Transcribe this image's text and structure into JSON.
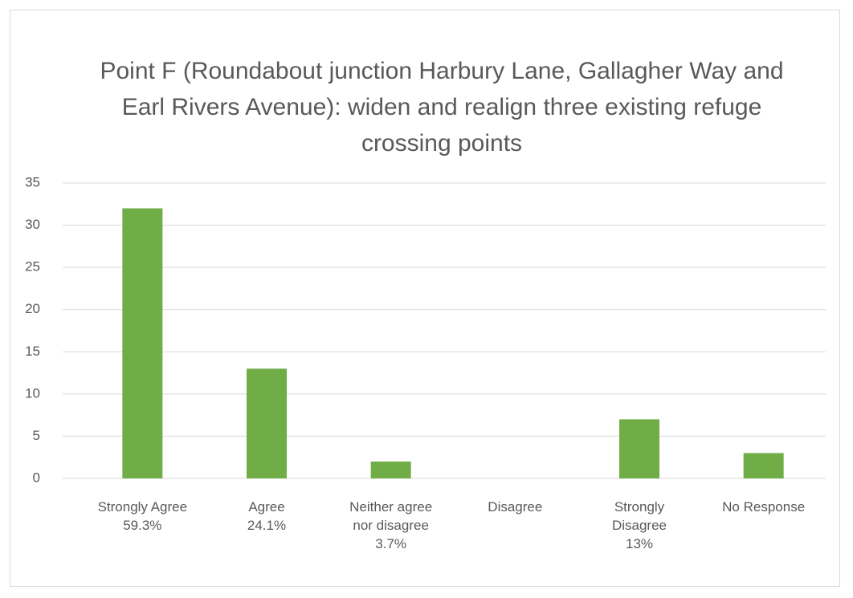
{
  "chart_data": {
    "type": "bar",
    "title": "Point F (Roundabout junction Harbury Lane, Gallagher Way and Earl Rivers Avenue): widen and realign three existing refuge crossing points",
    "categories": [
      "Strongly Agree\n59.3%",
      "Agree\n24.1%",
      "Neither agree\nnor disagree\n3.7%",
      "Disagree",
      "Strongly\nDisagree\n13%",
      "No Response"
    ],
    "values": [
      32,
      13,
      2,
      0,
      7,
      3
    ],
    "color": "#70ad47",
    "ylim": [
      0,
      35
    ],
    "yticks": [
      0,
      5,
      10,
      15,
      20,
      25,
      30,
      35
    ],
    "grid": true
  }
}
